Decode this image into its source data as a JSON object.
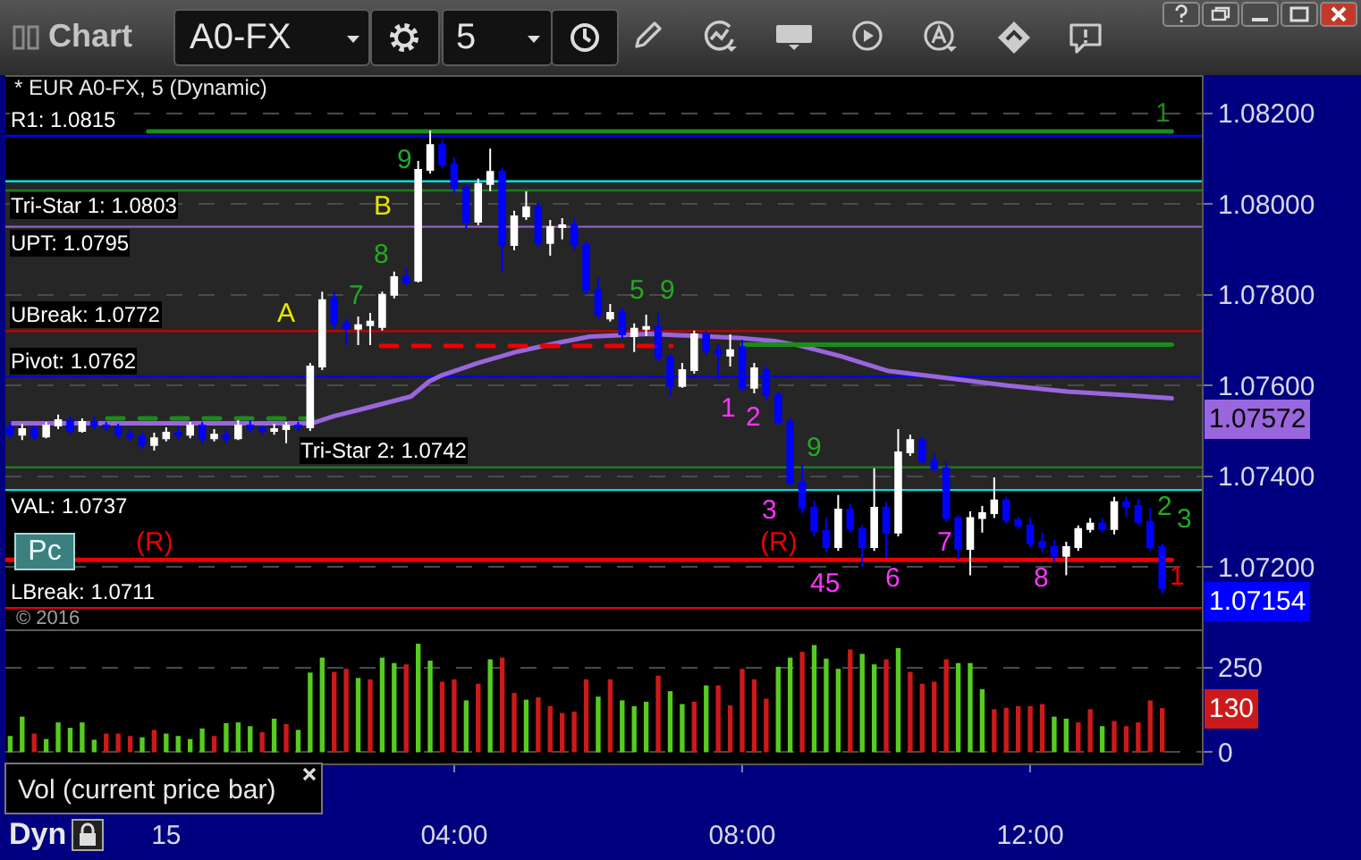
{
  "chart_data": [
    {
      "type": "candlestick",
      "title": "* EUR A0-FX, 5 (Dynamic)",
      "x": [
        "2016-11-14T21:50",
        "2016-11-14T22:00",
        "2016-11-14T22:10",
        "2016-11-14T22:20",
        "2016-11-14T22:30",
        "2016-11-14T22:40",
        "2016-11-14T22:50",
        "2016-11-14T23:00",
        "2016-11-14T23:10",
        "2016-11-14T23:20",
        "2016-11-14T23:30",
        "2016-11-14T23:40",
        "2016-11-14T23:50",
        "2016-11-15T00:00",
        "2016-11-15T00:10",
        "2016-11-15T00:20",
        "2016-11-15T00:30",
        "2016-11-15T00:40",
        "2016-11-15T00:50",
        "2016-11-15T01:00",
        "2016-11-15T01:10",
        "2016-11-15T01:20",
        "2016-11-15T01:30",
        "2016-11-15T01:40",
        "2016-11-15T01:50",
        "2016-11-15T02:00",
        "2016-11-15T02:10",
        "2016-11-15T02:20",
        "2016-11-15T02:30",
        "2016-11-15T02:40",
        "2016-11-15T02:50",
        "2016-11-15T03:00",
        "2016-11-15T03:10",
        "2016-11-15T03:20",
        "2016-11-15T03:30",
        "2016-11-15T03:40",
        "2016-11-15T03:50",
        "2016-11-15T04:00",
        "2016-11-15T04:10",
        "2016-11-15T04:20",
        "2016-11-15T04:30",
        "2016-11-15T04:40",
        "2016-11-15T04:50",
        "2016-11-15T05:00",
        "2016-11-15T05:10",
        "2016-11-15T05:20",
        "2016-11-15T05:30",
        "2016-11-15T05:40",
        "2016-11-15T05:50",
        "2016-11-15T06:00",
        "2016-11-15T06:10",
        "2016-11-15T06:20",
        "2016-11-15T06:30",
        "2016-11-15T06:40",
        "2016-11-15T06:50",
        "2016-11-15T07:00",
        "2016-11-15T07:10",
        "2016-11-15T07:20",
        "2016-11-15T07:30",
        "2016-11-15T07:40",
        "2016-11-15T07:50",
        "2016-11-15T08:00",
        "2016-11-15T08:10",
        "2016-11-15T08:20",
        "2016-11-15T08:30",
        "2016-11-15T08:40",
        "2016-11-15T08:50",
        "2016-11-15T09:00",
        "2016-11-15T09:10",
        "2016-11-15T09:20",
        "2016-11-15T09:30",
        "2016-11-15T09:40",
        "2016-11-15T09:50",
        "2016-11-15T10:00",
        "2016-11-15T10:10",
        "2016-11-15T10:20",
        "2016-11-15T10:30",
        "2016-11-15T10:40",
        "2016-11-15T10:50",
        "2016-11-15T11:00",
        "2016-11-15T11:10",
        "2016-11-15T11:20",
        "2016-11-15T11:30",
        "2016-11-15T11:40",
        "2016-11-15T11:50",
        "2016-11-15T12:00",
        "2016-11-15T12:10",
        "2016-11-15T12:20",
        "2016-11-15T12:30",
        "2016-11-15T12:40",
        "2016-11-15T12:50",
        "2016-11-15T13:00",
        "2016-11-15T13:10",
        "2016-11-15T13:20",
        "2016-11-15T13:30",
        "2016-11-15T13:40",
        "2016-11-15T13:50"
      ],
      "ohlc": [
        [
          1.07508,
          1.0752,
          1.07484,
          1.07492
        ],
        [
          1.07492,
          1.07516,
          1.0748,
          1.07504
        ],
        [
          1.07504,
          1.07512,
          1.0748,
          1.07488
        ],
        [
          1.07488,
          1.0752,
          1.07484,
          1.07512
        ],
        [
          1.07512,
          1.07536,
          1.07504,
          1.07524
        ],
        [
          1.07524,
          1.07532,
          1.07492,
          1.075
        ],
        [
          1.075,
          1.07528,
          1.07496,
          1.0752
        ],
        [
          1.0752,
          1.07532,
          1.07504,
          1.07512
        ],
        [
          1.07512,
          1.0752,
          1.075,
          1.07508
        ],
        [
          1.07508,
          1.07516,
          1.07484,
          1.07492
        ],
        [
          1.07492,
          1.07504,
          1.07477,
          1.07488
        ],
        [
          1.07488,
          1.075,
          1.07461,
          1.07469
        ],
        [
          1.07469,
          1.07496,
          1.07457,
          1.07484
        ],
        [
          1.07484,
          1.07508,
          1.07477,
          1.07496
        ],
        [
          1.07496,
          1.07512,
          1.0748,
          1.07492
        ],
        [
          1.07492,
          1.0752,
          1.07484,
          1.07512
        ],
        [
          1.07512,
          1.0752,
          1.07473,
          1.07484
        ],
        [
          1.07484,
          1.07504,
          1.07477,
          1.07492
        ],
        [
          1.07492,
          1.07504,
          1.07473,
          1.07484
        ],
        [
          1.07484,
          1.07524,
          1.0748,
          1.07512
        ],
        [
          1.07512,
          1.07524,
          1.07496,
          1.07504
        ],
        [
          1.07504,
          1.07512,
          1.07492,
          1.075
        ],
        [
          1.075,
          1.07516,
          1.07492,
          1.07504
        ],
        [
          1.07504,
          1.0752,
          1.07473,
          1.07512
        ],
        [
          1.07512,
          1.0752,
          1.075,
          1.07508
        ],
        [
          1.07508,
          1.0765,
          1.075,
          1.07642
        ],
        [
          1.07642,
          1.07807,
          1.07634,
          1.07788
        ],
        [
          1.07792,
          1.07807,
          1.07725,
          1.07737
        ],
        [
          1.07737,
          1.07748,
          1.07689,
          1.07725
        ],
        [
          1.07725,
          1.07752,
          1.07689,
          1.07733
        ],
        [
          1.07733,
          1.0776,
          1.07689,
          1.07741
        ],
        [
          1.07729,
          1.07807,
          1.07721,
          1.078
        ],
        [
          1.078,
          1.07851,
          1.07792,
          1.07839
        ],
        [
          1.07839,
          1.07859,
          1.07819,
          1.07827
        ],
        [
          1.07831,
          1.08095,
          1.07827,
          1.08075
        ],
        [
          1.08075,
          1.08162,
          1.08067,
          1.0813
        ],
        [
          1.0813,
          1.08142,
          1.08079,
          1.08087
        ],
        [
          1.08087,
          1.08103,
          1.08024,
          1.08036
        ],
        [
          1.08036,
          1.08044,
          1.07945,
          1.07961
        ],
        [
          1.07961,
          1.08056,
          1.07953,
          1.08044
        ],
        [
          1.08044,
          1.08122,
          1.08028,
          1.08071
        ],
        [
          1.08071,
          1.08079,
          1.07851,
          1.0791
        ],
        [
          1.0791,
          1.07985,
          1.07898,
          1.07973
        ],
        [
          1.07973,
          1.08028,
          1.07965,
          1.07993
        ],
        [
          1.07993,
          1.08004,
          1.07906,
          1.07914
        ],
        [
          1.07914,
          1.07965,
          1.07886,
          1.07949
        ],
        [
          1.07949,
          1.07969,
          1.07922,
          1.07953
        ],
        [
          1.07953,
          1.07969,
          1.07898,
          1.0791
        ],
        [
          1.0791,
          1.07918,
          1.078,
          1.07811
        ],
        [
          1.07811,
          1.07839,
          1.07748,
          1.07756
        ],
        [
          1.07748,
          1.0778,
          1.07741,
          1.0776
        ],
        [
          1.0776,
          1.07772,
          1.07701,
          1.07713
        ],
        [
          1.07709,
          1.07737,
          1.07674,
          1.07725
        ],
        [
          1.07725,
          1.07756,
          1.07709,
          1.07729
        ],
        [
          1.07729,
          1.0776,
          1.07654,
          1.07662
        ],
        [
          1.07662,
          1.0767,
          1.07575,
          1.07599
        ],
        [
          1.07599,
          1.0765,
          1.07595,
          1.07634
        ],
        [
          1.07634,
          1.07721,
          1.07626,
          1.07713
        ],
        [
          1.07713,
          1.07721,
          1.07666,
          1.07678
        ],
        [
          1.07678,
          1.07693,
          1.07611,
          1.0767
        ],
        [
          1.07666,
          1.07713,
          1.07642,
          1.07678
        ],
        [
          1.07685,
          1.07701,
          1.07587,
          1.07595
        ],
        [
          1.07595,
          1.0765,
          1.07583,
          1.07638
        ],
        [
          1.07634,
          1.07642,
          1.07567,
          1.07579
        ],
        [
          1.07579,
          1.07587,
          1.07512,
          1.0752
        ],
        [
          1.0752,
          1.07528,
          1.07378,
          1.07386
        ],
        [
          1.07386,
          1.07426,
          1.07319,
          1.07331
        ],
        [
          1.07331,
          1.07347,
          1.07268,
          1.0728
        ],
        [
          1.0728,
          1.07308,
          1.07232,
          1.07244
        ],
        [
          1.07244,
          1.07359,
          1.07236,
          1.07327
        ],
        [
          1.07327,
          1.07339,
          1.07276,
          1.07284
        ],
        [
          1.07284,
          1.07292,
          1.07201,
          1.07244
        ],
        [
          1.07244,
          1.07418,
          1.07236,
          1.07331
        ],
        [
          1.07331,
          1.07343,
          1.07221,
          1.07276
        ],
        [
          1.07276,
          1.07504,
          1.07268,
          1.07453
        ],
        [
          1.07453,
          1.07492,
          1.07445,
          1.0748
        ],
        [
          1.0748,
          1.07488,
          1.07426,
          1.07433
        ],
        [
          1.07433,
          1.07449,
          1.0741,
          1.07418
        ],
        [
          1.07418,
          1.07433,
          1.073,
          1.07308
        ],
        [
          1.07308,
          1.07315,
          1.07217,
          1.0724
        ],
        [
          1.0724,
          1.07323,
          1.07182,
          1.07308
        ],
        [
          1.07308,
          1.07335,
          1.07276,
          1.07319
        ],
        [
          1.07319,
          1.07398,
          1.07308,
          1.07347
        ],
        [
          1.07347,
          1.07355,
          1.07296,
          1.07304
        ],
        [
          1.07304,
          1.07311,
          1.07284,
          1.07292
        ],
        [
          1.07292,
          1.07308,
          1.07244,
          1.07252
        ],
        [
          1.07256,
          1.07276,
          1.07232,
          1.07244
        ],
        [
          1.07244,
          1.0726,
          1.07213,
          1.07225
        ],
        [
          1.07225,
          1.07256,
          1.07182,
          1.07244
        ],
        [
          1.07244,
          1.07292,
          1.07236,
          1.07284
        ],
        [
          1.07284,
          1.07308,
          1.07276,
          1.07296
        ],
        [
          1.07296,
          1.07308,
          1.07276,
          1.07284
        ],
        [
          1.07284,
          1.07355,
          1.07272,
          1.07343
        ],
        [
          1.07343,
          1.07355,
          1.07311,
          1.07335
        ],
        [
          1.07335,
          1.07351,
          1.07292,
          1.073
        ],
        [
          1.073,
          1.07331,
          1.07236,
          1.07244
        ],
        [
          1.07244,
          1.07252,
          1.07142,
          1.07154
        ]
      ],
      "colors": [
        "#0000ff",
        "#ffffff",
        "#0000ff",
        "#ffffff",
        "#ffffff",
        "#0000ff",
        "#ffffff",
        "#0000ff",
        "#0000ff",
        "#0000ff",
        "#0000ff",
        "#0000ff",
        "#ffffff",
        "#ffffff",
        "#0000ff",
        "#ffffff",
        "#0000ff",
        "#ffffff",
        "#0000ff",
        "#ffffff",
        "#0000ff",
        "#0000ff",
        "#ffffff",
        "#ffffff",
        "#0000ff",
        "#ffffff",
        "#ffffff",
        "#0000ff",
        "#0000ff",
        "#ffffff",
        "#ffffff",
        "#ffffff",
        "#ffffff",
        "#0000ff",
        "#ffffff",
        "#ffffff",
        "#0000ff",
        "#0000ff",
        "#0000ff",
        "#ffffff",
        "#ffffff",
        "#0000ff",
        "#ffffff",
        "#ffffff",
        "#0000ff",
        "#ffffff",
        "#ffffff",
        "#0000ff",
        "#0000ff",
        "#0000ff",
        "#ffffff",
        "#0000ff",
        "#ffffff",
        "#ffffff",
        "#0000ff",
        "#0000ff",
        "#ffffff",
        "#ffffff",
        "#0000ff",
        "#0000ff",
        "#ffffff",
        "#0000ff",
        "#ffffff",
        "#0000ff",
        "#0000ff",
        "#0000ff",
        "#0000ff",
        "#0000ff",
        "#0000ff",
        "#ffffff",
        "#0000ff",
        "#0000ff",
        "#ffffff",
        "#0000ff",
        "#ffffff",
        "#ffffff",
        "#0000ff",
        "#0000ff",
        "#0000ff",
        "#0000ff",
        "#ffffff",
        "#ffffff",
        "#ffffff",
        "#0000ff",
        "#0000ff",
        "#0000ff",
        "#0000ff",
        "#0000ff",
        "#ffffff",
        "#ffffff",
        "#ffffff",
        "#0000ff",
        "#ffffff",
        "#0000ff",
        "#0000ff",
        "#0000ff",
        "#0000ff"
      ],
      "series": [
        {
          "type": "line",
          "color": "#9966dd",
          "x": [
            "2016-11-14T21:52",
            "2016-11-15T02:02",
            "2016-11-15T02:20",
            "2016-11-15T02:40",
            "2016-11-15T03:24",
            "2016-11-15T03:39",
            "2016-11-15T03:50",
            "2016-11-15T04:19",
            "2016-11-15T04:53",
            "2016-11-15T05:28",
            "2016-11-15T05:53",
            "2016-11-15T06:43",
            "2016-11-15T07:57",
            "2016-11-15T08:27",
            "2016-11-15T08:48",
            "2016-11-15T09:22",
            "2016-11-15T10:02",
            "2016-11-15T10:41",
            "2016-11-15T11:41",
            "2016-11-15T12:31",
            "2016-11-15T13:20",
            "2016-11-15T13:58"
          ],
          "values": [
            1.07517,
            1.07517,
            1.07533,
            1.07546,
            1.07576,
            1.07609,
            1.07623,
            1.07649,
            1.07675,
            1.07695,
            1.07708,
            1.07714,
            1.07705,
            1.07698,
            1.07688,
            1.07665,
            1.07632,
            1.0762,
            1.076,
            1.07587,
            1.07579,
            1.07572
          ]
        },
        {
          "type": "line",
          "color": "#1a8c1a",
          "x": [
            "2016-11-14T23:45",
            "2016-11-15T13:58"
          ],
          "values": [
            1.0816,
            1.0816
          ]
        },
        {
          "type": "line",
          "color": "#ee0000",
          "x": [
            "2016-11-14T21:46",
            "2016-11-15T13:58"
          ],
          "values": [
            1.07216,
            1.07216
          ]
        },
        {
          "type": "line",
          "color": "#1a8c1a",
          "x": [
            "2016-11-14T23:11",
            "2016-11-15T02:02"
          ],
          "values": [
            1.07528,
            1.07528
          ],
          "line_style": "dashed"
        },
        {
          "type": "line",
          "color": "#ee0000",
          "x": [
            "2016-11-15T02:59",
            "2016-11-15T07:01"
          ],
          "values": [
            1.07687,
            1.07687
          ],
          "line_style": "dashed"
        },
        {
          "type": "line",
          "color": "#1a8c1a",
          "x": [
            "2016-11-15T08:00",
            "2016-11-15T13:58"
          ],
          "values": [
            1.0769,
            1.0769
          ]
        }
      ],
      "ref_lines": [
        {
          "axis": "y",
          "value": 1.0815,
          "label": "R1: 1.0815",
          "color": "#0000ff"
        },
        {
          "axis": "y",
          "value": 1.0805,
          "label": null,
          "color": "#00e0e0"
        },
        {
          "axis": "y",
          "value": 1.0803,
          "label": "Tri-Star 1: 1.0803",
          "color": "#1e7a1e"
        },
        {
          "axis": "y",
          "value": 1.0795,
          "label": "UPT: 1.0795",
          "color": "#9060c0"
        },
        {
          "axis": "y",
          "value": 1.0772,
          "label": "UBreak: 1.0772",
          "color": "#cc0000"
        },
        {
          "axis": "y",
          "value": 1.0762,
          "label": "Pivot: 1.0762",
          "color": "#0000ff"
        },
        {
          "axis": "y",
          "value": 1.0742,
          "label": "Tri-Star 2: 1.0742",
          "color": "#1e7a1e"
        },
        {
          "axis": "y",
          "value": 1.0737,
          "label": "VAL: 1.0737",
          "color": "#00e0e0"
        },
        {
          "axis": "y",
          "value": 1.0711,
          "label": "LBreak: 1.0711",
          "color": "#ee0000"
        }
      ],
      "bands": [
        {
          "axis": "y",
          "from": 1.0737,
          "to": 1.0805,
          "color": "#262626"
        }
      ],
      "annotations": [
        "Chart",
        "A0-FX",
        "5",
        "Pc",
        "© 2016",
        {
          "text": "A",
          "x": "2016-11-15T01:40",
          "y": 1.0772
        },
        {
          "text": "B",
          "x": "2016-11-15T03:00",
          "y": 1.0803
        },
        {
          "text": "7",
          "x": "2016-11-15T02:50",
          "y": 1.0776
        },
        {
          "text": "8",
          "x": "2016-11-15T03:10",
          "y": 1.07851
        },
        {
          "text": "9",
          "x": "2016-11-15T03:30",
          "y": 1.08095
        },
        {
          "text": "5",
          "x": "2016-11-15T06:20",
          "y": 1.07772
        },
        {
          "text": "9",
          "x": "2016-11-15T06:40",
          "y": 1.07756
        },
        {
          "text": "1",
          "x": "2016-11-15T08:00",
          "y": 1.07587
        },
        {
          "text": "2",
          "x": "2016-11-15T08:20",
          "y": 1.07567
        },
        {
          "text": "3",
          "x": "2016-11-15T08:40",
          "y": 1.07378
        },
        {
          "text": "45",
          "x": "2016-11-15T09:10",
          "y": 1.07232
        },
        {
          "text": "(R)",
          "x": "2016-11-15T08:30",
          "y": 1.07216
        },
        {
          "text": "6",
          "x": "2016-11-15T09:30",
          "y": 1.07276
        },
        {
          "text": "7",
          "x": "2016-11-15T11:00",
          "y": 1.07217
        },
        {
          "text": "8",
          "x": "2016-11-15T12:20",
          "y": 1.07213
        },
        {
          "text": "9",
          "x": "2016-11-15T09:00",
          "y": 1.07347
        },
        {
          "text": "(R)",
          "x": "2016-11-14T23:50",
          "y": 1.07216
        },
        {
          "text": "2",
          "x": "2016-11-15T13:40",
          "y": 1.07331
        },
        {
          "text": "3",
          "x": "2016-11-15T13:50",
          "y": 1.07252
        },
        {
          "text": "1",
          "x": "2016-11-15T13:50",
          "y": 1.0816
        },
        {
          "text": "1",
          "x": "2016-11-15T13:50",
          "y": 1.07216
        },
        {
          "text": "1.07572",
          "x": "2016-11-15T13:58",
          "y": 1.07572
        },
        {
          "text": "1.07154",
          "x": "2016-11-15T13:50",
          "y": 1.07154
        }
      ],
      "xlim": [
        "2016-11-14T21:46",
        "2016-11-15T14:23"
      ],
      "ylim": [
        1.07063,
        1.0828
      ],
      "yticks": [
        {
          "value": 1.072,
          "label": "1.07200"
        },
        {
          "value": 1.074,
          "label": "1.07400"
        },
        {
          "value": 1.076,
          "label": "1.07600"
        },
        {
          "value": 1.078,
          "label": "1.07800"
        },
        {
          "value": 1.08,
          "label": "1.08000"
        },
        {
          "value": 1.082,
          "label": "1.08200"
        }
      ],
      "grid": "y",
      "tick_labels": "y"
    },
    {
      "type": "bar",
      "title": "Vol (current price bar)",
      "x": [
        "2016-11-14T21:50",
        "2016-11-14T22:00",
        "2016-11-14T22:10",
        "2016-11-14T22:20",
        "2016-11-14T22:30",
        "2016-11-14T22:40",
        "2016-11-14T22:50",
        "2016-11-14T23:00",
        "2016-11-14T23:10",
        "2016-11-14T23:20",
        "2016-11-14T23:30",
        "2016-11-14T23:40",
        "2016-11-14T23:50",
        "2016-11-15T00:00",
        "2016-11-15T00:10",
        "2016-11-15T00:20",
        "2016-11-15T00:30",
        "2016-11-15T00:40",
        "2016-11-15T00:50",
        "2016-11-15T01:00",
        "2016-11-15T01:10",
        "2016-11-15T01:20",
        "2016-11-15T01:30",
        "2016-11-15T01:40",
        "2016-11-15T01:50",
        "2016-11-15T02:00",
        "2016-11-15T02:10",
        "2016-11-15T02:20",
        "2016-11-15T02:30",
        "2016-11-15T02:40",
        "2016-11-15T02:50",
        "2016-11-15T03:00",
        "2016-11-15T03:10",
        "2016-11-15T03:20",
        "2016-11-15T03:30",
        "2016-11-15T03:40",
        "2016-11-15T03:50",
        "2016-11-15T04:00",
        "2016-11-15T04:10",
        "2016-11-15T04:20",
        "2016-11-15T04:30",
        "2016-11-15T04:40",
        "2016-11-15T04:50",
        "2016-11-15T05:00",
        "2016-11-15T05:10",
        "2016-11-15T05:20",
        "2016-11-15T05:30",
        "2016-11-15T05:40",
        "2016-11-15T05:50",
        "2016-11-15T06:00",
        "2016-11-15T06:10",
        "2016-11-15T06:20",
        "2016-11-15T06:30",
        "2016-11-15T06:40",
        "2016-11-15T06:50",
        "2016-11-15T07:00",
        "2016-11-15T07:10",
        "2016-11-15T07:20",
        "2016-11-15T07:30",
        "2016-11-15T07:40",
        "2016-11-15T07:50",
        "2016-11-15T08:00",
        "2016-11-15T08:10",
        "2016-11-15T08:20",
        "2016-11-15T08:30",
        "2016-11-15T08:40",
        "2016-11-15T08:50",
        "2016-11-15T09:00",
        "2016-11-15T09:10",
        "2016-11-15T09:20",
        "2016-11-15T09:30",
        "2016-11-15T09:40",
        "2016-11-15T09:50",
        "2016-11-15T10:00",
        "2016-11-15T10:10",
        "2016-11-15T10:20",
        "2016-11-15T10:30",
        "2016-11-15T10:40",
        "2016-11-15T10:50",
        "2016-11-15T11:00",
        "2016-11-15T11:10",
        "2016-11-15T11:20",
        "2016-11-15T11:30",
        "2016-11-15T11:40",
        "2016-11-15T11:50",
        "2016-11-15T12:00",
        "2016-11-15T12:10",
        "2016-11-15T12:20",
        "2016-11-15T12:30",
        "2016-11-15T12:40",
        "2016-11-15T12:50",
        "2016-11-15T13:00",
        "2016-11-15T13:10",
        "2016-11-15T13:20",
        "2016-11-15T13:30",
        "2016-11-15T13:40",
        "2016-11-15T13:50"
      ],
      "values": [
        48,
        105,
        55,
        39,
        88,
        72,
        88,
        37,
        55,
        55,
        48,
        44,
        66,
        55,
        48,
        39,
        70,
        48,
        86,
        88,
        77,
        59,
        99,
        83,
        66,
        235,
        279,
        237,
        246,
        219,
        215,
        279,
        263,
        259,
        320,
        270,
        208,
        215,
        153,
        202,
        274,
        279,
        175,
        155,
        162,
        136,
        116,
        120,
        215,
        164,
        215,
        153,
        136,
        149,
        226,
        180,
        142,
        149,
        197,
        197,
        138,
        246,
        215,
        158,
        252,
        279,
        296,
        316,
        276,
        246,
        303,
        290,
        259,
        274,
        307,
        237,
        202,
        208,
        274,
        263,
        263,
        186,
        127,
        131,
        136,
        136,
        142,
        105,
        99,
        88,
        127,
        77,
        92,
        77,
        88,
        153,
        130
      ],
      "colors": [
        "#55cc22",
        "#55cc22",
        "#cc1a1a",
        "#55cc22",
        "#55cc22",
        "#55cc22",
        "#55cc22",
        "#55cc22",
        "#cc1a1a",
        "#cc1a1a",
        "#cc1a1a",
        "#55cc22",
        "#cc1a1a",
        "#55cc22",
        "#55cc22",
        "#55cc22",
        "#55cc22",
        "#cc1a1a",
        "#55cc22",
        "#55cc22",
        "#55cc22",
        "#cc1a1a",
        "#55cc22",
        "#cc1a1a",
        "#55cc22",
        "#55cc22",
        "#55cc22",
        "#cc1a1a",
        "#cc1a1a",
        "#55cc22",
        "#cc1a1a",
        "#55cc22",
        "#55cc22",
        "#cc1a1a",
        "#55cc22",
        "#55cc22",
        "#cc1a1a",
        "#cc1a1a",
        "#55cc22",
        "#cc1a1a",
        "#55cc22",
        "#cc1a1a",
        "#cc1a1a",
        "#55cc22",
        "#cc1a1a",
        "#cc1a1a",
        "#cc1a1a",
        "#cc1a1a",
        "#cc1a1a",
        "#55cc22",
        "#cc1a1a",
        "#55cc22",
        "#55cc22",
        "#55cc22",
        "#cc1a1a",
        "#55cc22",
        "#55cc22",
        "#cc1a1a",
        "#55cc22",
        "#cc1a1a",
        "#cc1a1a",
        "#cc1a1a",
        "#cc1a1a",
        "#cc1a1a",
        "#55cc22",
        "#55cc22",
        "#cc1a1a",
        "#55cc22",
        "#55cc22",
        "#55cc22",
        "#cc1a1a",
        "#55cc22",
        "#55cc22",
        "#cc1a1a",
        "#55cc22",
        "#cc1a1a",
        "#cc1a1a",
        "#cc1a1a",
        "#cc1a1a",
        "#55cc22",
        "#55cc22",
        "#55cc22",
        "#cc1a1a",
        "#cc1a1a",
        "#cc1a1a",
        "#cc1a1a",
        "#cc1a1a",
        "#55cc22",
        "#55cc22",
        "#cc1a1a",
        "#cc1a1a",
        "#55cc22",
        "#cc1a1a",
        "#cc1a1a",
        "#cc1a1a",
        "#cc1a1a",
        "#cc1a1a"
      ],
      "annotations": [
        "Dyn",
        {
          "text": "130",
          "x": "2016-11-15T13:50",
          "y": 130
        }
      ],
      "xlim": [
        "2016-11-14T21:46",
        "2016-11-15T14:23"
      ],
      "xticks": [
        {
          "value": "2016-11-15T00:00",
          "label": "15"
        },
        {
          "value": "2016-11-15T04:00",
          "label": "04:00"
        },
        {
          "value": "2016-11-15T08:00",
          "label": "08:00"
        },
        {
          "value": "2016-11-15T12:00",
          "label": "12:00"
        }
      ],
      "ylim": [
        -33,
        357
      ],
      "yticks": [
        0,
        250
      ],
      "grid": "y"
    }
  ]
}
